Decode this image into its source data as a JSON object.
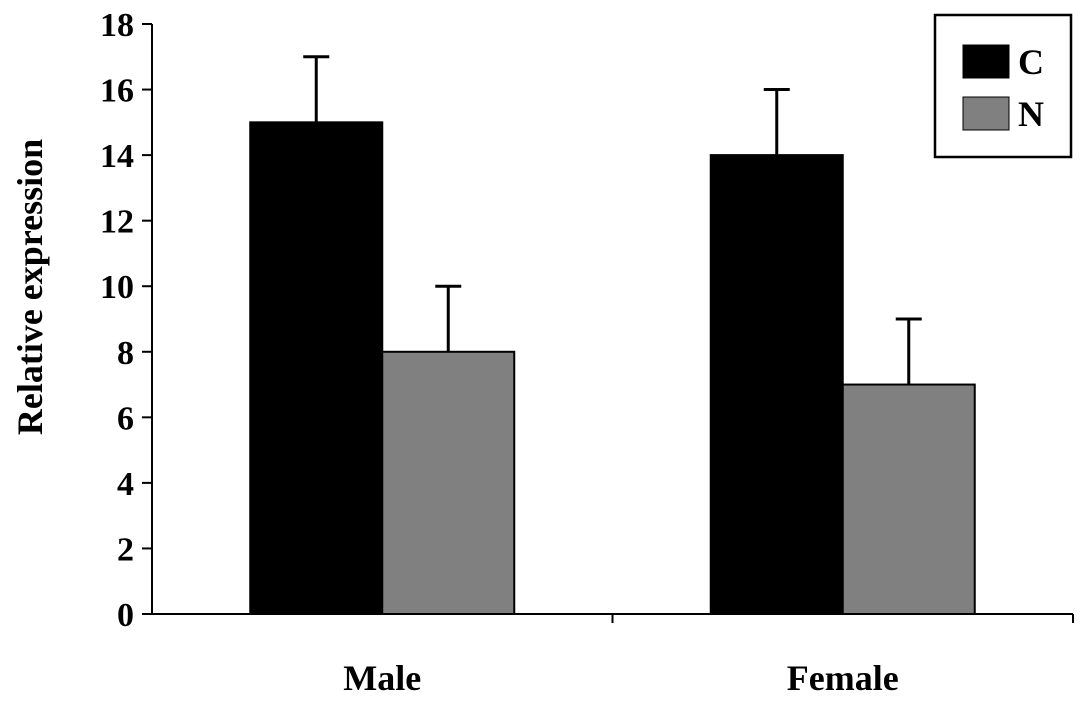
{
  "chart_data": {
    "type": "bar",
    "categories": [
      "Male",
      "Female"
    ],
    "series": [
      {
        "name": "C",
        "values": [
          15,
          14
        ],
        "errors": [
          2,
          2
        ],
        "color": "#000000"
      },
      {
        "name": "N",
        "values": [
          8,
          7
        ],
        "errors": [
          2,
          2
        ],
        "color": "#808080"
      }
    ],
    "title": "",
    "xlabel": "",
    "ylabel": "Relative expression",
    "ylim": [
      0,
      18
    ],
    "yticks": [
      0,
      2,
      4,
      6,
      8,
      10,
      12,
      14,
      16,
      18
    ],
    "grid": false,
    "legend_position": "top-right"
  }
}
